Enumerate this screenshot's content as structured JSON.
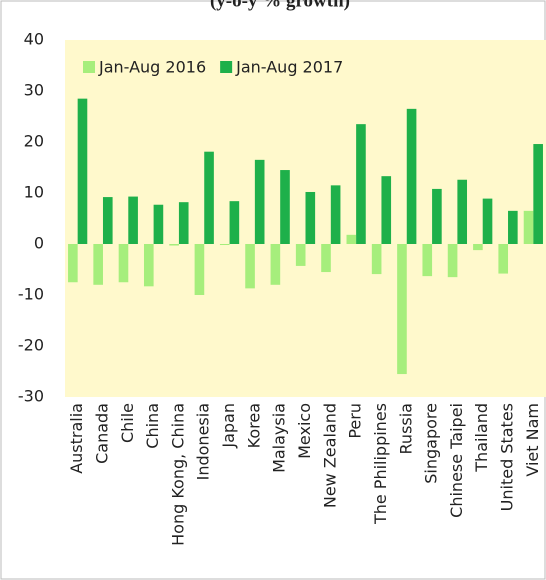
{
  "chart_data": {
    "type": "bar",
    "title": "(y-o-y % growth)",
    "categories": [
      "Australia",
      "Canada",
      "Chile",
      "China",
      "Hong Kong, China",
      "Indonesia",
      "Japan",
      "Korea",
      "Malaysia",
      "Mexico",
      "New Zealand",
      "Peru",
      "The Philippines",
      "Russia",
      "Singapore",
      "Chinese Taipei",
      "Thailand",
      "United States",
      "Viet Nam"
    ],
    "series": [
      {
        "name": "Jan-Aug 2016",
        "color": "#a6ee7c",
        "values": [
          -7.5,
          -8,
          -7.5,
          -8.3,
          -0.3,
          -10,
          -0.2,
          -8.7,
          -8,
          -4.3,
          -5.5,
          1.8,
          -5.9,
          -25.5,
          -6.3,
          -6.5,
          -1.2,
          -5.8,
          6.5
        ]
      },
      {
        "name": "Jan-Aug 2017",
        "color": "#1eb04a",
        "values": [
          28.5,
          9.2,
          9.3,
          7.7,
          8.2,
          18.1,
          8.4,
          16.5,
          14.5,
          10.2,
          11.5,
          23.5,
          13.3,
          26.5,
          10.8,
          12.6,
          8.9,
          6.5,
          19.6
        ]
      }
    ],
    "ylim": [
      -30,
      40
    ],
    "yticks": [
      -30,
      -20,
      -10,
      0,
      10,
      20,
      30,
      40
    ],
    "background": "#fff9cc",
    "legend": "top-left"
  }
}
